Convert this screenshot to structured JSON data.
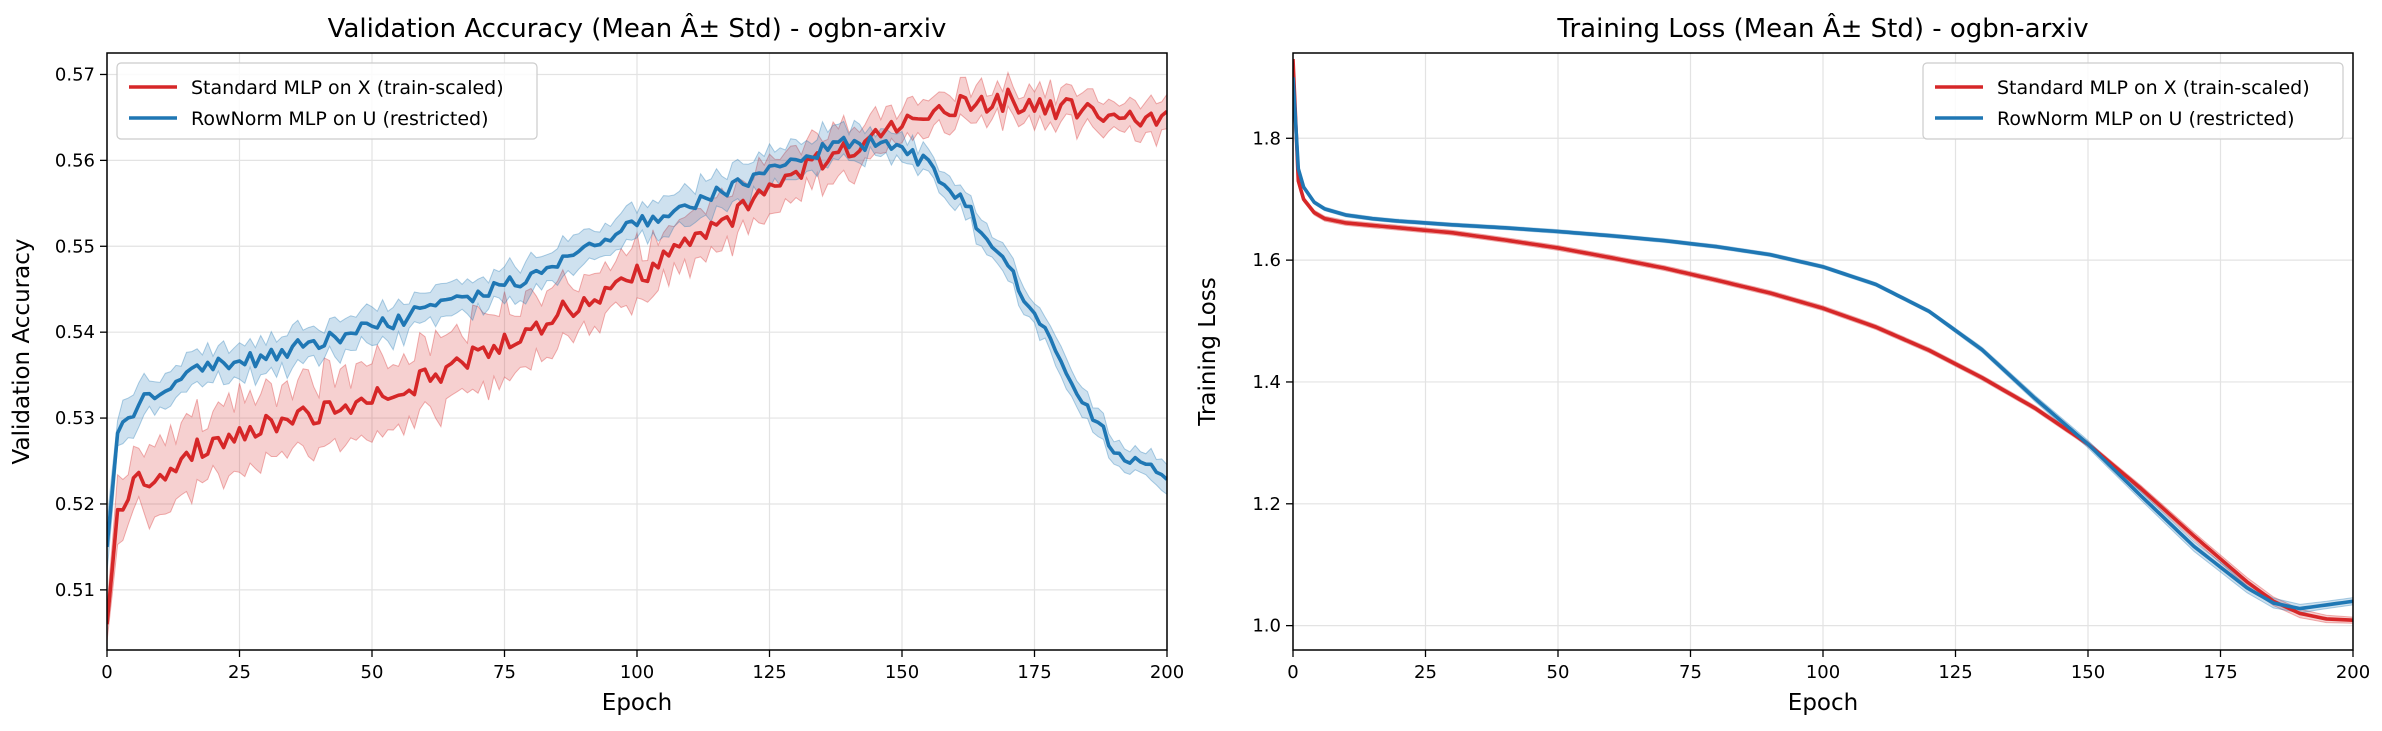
{
  "chart_data": [
    {
      "type": "line",
      "title": "Validation Accuracy (Mean Â± Std) - ogbn-arxiv",
      "xlabel": "Epoch",
      "ylabel": "Validation Accuracy",
      "xlim": [
        0,
        200
      ],
      "ylim": [
        0.503,
        0.5725
      ],
      "xticks": [
        "0",
        "25",
        "50",
        "75",
        "100",
        "125",
        "150",
        "175",
        "200"
      ],
      "yticks": [
        "0.51",
        "0.52",
        "0.53",
        "0.54",
        "0.55",
        "0.56",
        "0.57"
      ],
      "grid": true,
      "legend_position": "upper left",
      "series": [
        {
          "name": "Standard MLP on X (train-scaled)",
          "color": "#d62728",
          "x": [
            0,
            2,
            5,
            10,
            15,
            20,
            25,
            30,
            40,
            50,
            60,
            70,
            80,
            90,
            100,
            110,
            120,
            130,
            140,
            150,
            160,
            170,
            175,
            180,
            190,
            200
          ],
          "mean": [
            0.506,
            0.519,
            0.5225,
            0.5235,
            0.526,
            0.527,
            0.528,
            0.529,
            0.5305,
            0.532,
            0.5345,
            0.5375,
            0.5405,
            0.5435,
            0.5465,
            0.55,
            0.5545,
            0.5585,
            0.5615,
            0.5645,
            0.5665,
            0.567,
            0.5665,
            0.566,
            0.5655,
            0.565
          ],
          "std": [
            0.002,
            0.004,
            0.004,
            0.004,
            0.004,
            0.004,
            0.004,
            0.004,
            0.004,
            0.004,
            0.004,
            0.004,
            0.004,
            0.003,
            0.003,
            0.003,
            0.003,
            0.003,
            0.003,
            0.002,
            0.002,
            0.002,
            0.002,
            0.002,
            0.002,
            0.002
          ]
        },
        {
          "name": "RowNorm MLP on U (restricted)",
          "color": "#1f77b4",
          "x": [
            0,
            2,
            5,
            10,
            15,
            20,
            25,
            30,
            40,
            50,
            60,
            70,
            80,
            90,
            100,
            110,
            120,
            130,
            140,
            145,
            150,
            155,
            160,
            170,
            180,
            190,
            200
          ],
          "mean": [
            0.515,
            0.528,
            0.531,
            0.5335,
            0.535,
            0.536,
            0.5365,
            0.537,
            0.539,
            0.5405,
            0.5425,
            0.5445,
            0.5465,
            0.5495,
            0.5525,
            0.555,
            0.5575,
            0.5605,
            0.562,
            0.562,
            0.561,
            0.5595,
            0.5565,
            0.5475,
            0.5365,
            0.5265,
            0.523
          ],
          "std": [
            0.003,
            0.002,
            0.002,
            0.002,
            0.002,
            0.002,
            0.002,
            0.002,
            0.002,
            0.002,
            0.002,
            0.002,
            0.002,
            0.002,
            0.002,
            0.002,
            0.002,
            0.002,
            0.002,
            0.0015,
            0.0015,
            0.0015,
            0.0015,
            0.0015,
            0.0015,
            0.0015,
            0.0015
          ]
        }
      ]
    },
    {
      "type": "line",
      "title": "Training Loss (Mean Â± Std) - ogbn-arxiv",
      "xlabel": "Epoch",
      "ylabel": "Training Loss",
      "xlim": [
        0,
        200
      ],
      "ylim": [
        0.96,
        1.94
      ],
      "xticks": [
        "0",
        "25",
        "50",
        "75",
        "100",
        "125",
        "150",
        "175",
        "200"
      ],
      "yticks": [
        "1.0",
        "1.2",
        "1.4",
        "1.6",
        "1.8"
      ],
      "grid": true,
      "legend_position": "upper right",
      "series": [
        {
          "name": "Standard MLP on X (train-scaled)",
          "color": "#d62728",
          "x": [
            0,
            1,
            2,
            4,
            6,
            10,
            15,
            20,
            25,
            30,
            40,
            50,
            60,
            70,
            80,
            90,
            100,
            110,
            120,
            130,
            140,
            150,
            160,
            170,
            180,
            185,
            190,
            195,
            200
          ],
          "mean": [
            1.93,
            1.73,
            1.7,
            1.678,
            1.668,
            1.661,
            1.657,
            1.653,
            1.649,
            1.645,
            1.633,
            1.62,
            1.604,
            1.587,
            1.567,
            1.546,
            1.521,
            1.49,
            1.452,
            1.407,
            1.357,
            1.298,
            1.225,
            1.147,
            1.072,
            1.04,
            1.02,
            1.011,
            1.009
          ],
          "std": [
            0.004,
            0.004,
            0.004,
            0.004,
            0.004,
            0.004,
            0.004,
            0.004,
            0.004,
            0.004,
            0.004,
            0.004,
            0.004,
            0.004,
            0.004,
            0.004,
            0.004,
            0.004,
            0.004,
            0.004,
            0.004,
            0.004,
            0.005,
            0.006,
            0.007,
            0.007,
            0.007,
            0.006,
            0.005
          ]
        },
        {
          "name": "RowNorm MLP on U (restricted)",
          "color": "#1f77b4",
          "x": [
            0,
            1,
            2,
            4,
            6,
            10,
            15,
            20,
            25,
            30,
            40,
            50,
            60,
            70,
            80,
            90,
            100,
            110,
            120,
            130,
            140,
            150,
            160,
            170,
            180,
            185,
            190,
            195,
            200
          ],
          "mean": [
            1.9,
            1.75,
            1.72,
            1.695,
            1.684,
            1.674,
            1.668,
            1.664,
            1.661,
            1.658,
            1.653,
            1.647,
            1.64,
            1.632,
            1.622,
            1.609,
            1.589,
            1.56,
            1.516,
            1.453,
            1.373,
            1.298,
            1.213,
            1.13,
            1.062,
            1.037,
            1.028,
            1.034,
            1.04
          ],
          "std": [
            0.003,
            0.003,
            0.003,
            0.003,
            0.003,
            0.003,
            0.003,
            0.003,
            0.003,
            0.003,
            0.003,
            0.003,
            0.003,
            0.003,
            0.003,
            0.003,
            0.003,
            0.003,
            0.003,
            0.004,
            0.005,
            0.006,
            0.007,
            0.008,
            0.008,
            0.008,
            0.007,
            0.006,
            0.006
          ]
        }
      ]
    }
  ]
}
